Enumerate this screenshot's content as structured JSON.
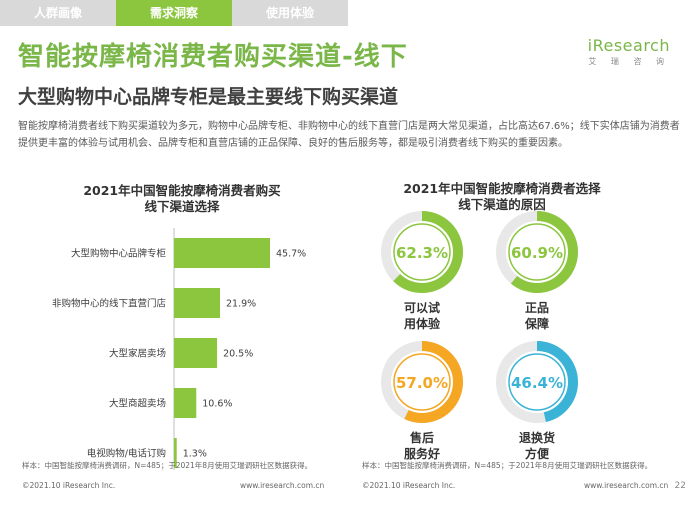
{
  "nav": {
    "tabs": [
      {
        "label": "人群画像"
      },
      {
        "label": "需求洞察"
      },
      {
        "label": "使用体验"
      }
    ]
  },
  "logo": {
    "main": "iResearch",
    "sub": "艾 瑞 咨 询"
  },
  "title": "智能按摩椅消费者购买渠道-线下",
  "subtitle": "大型购物中心品牌专柜是最主要线下购买渠道",
  "description": "智能按摩椅消费者线下购买渠道较为多元，购物中心品牌专柜、非购物中心的线下直营门店是两大常见渠道，占比高达67.6%；线下实体店铺为消费者提供更丰富的体验与试用机会、品牌专柜和直营店铺的正品保障、良好的售后服务等，都是吸引消费者线下购买的重要因素。",
  "left_chart_title": [
    "2021年中国智能按摩椅消费者购买",
    "线下渠道选择"
  ],
  "right_chart_title": [
    "2021年中国智能按摩椅消费者选择",
    "线下渠道的原因"
  ],
  "colors": {
    "accent": "#7ab648",
    "bar": "#8cc63f",
    "blue": "#3bb3d6",
    "orange": "#f5a623"
  },
  "chart_data": [
    {
      "type": "bar",
      "orientation": "horizontal",
      "title": "2021年中国智能按摩椅消费者购买线下渠道选择",
      "categories": [
        "大型购物中心品牌专柜",
        "非购物中心的线下直营门店",
        "大型家居卖场",
        "大型商超卖场",
        "电视购物/电话订购"
      ],
      "values": [
        45.7,
        21.9,
        20.5,
        10.6,
        1.3
      ],
      "value_labels": [
        "45.7%",
        "21.9%",
        "20.5%",
        "10.6%",
        "1.3%"
      ],
      "unit": "%",
      "xlim": [
        0,
        50
      ]
    },
    {
      "type": "pie",
      "subtype": "donut-gauges",
      "title": "2021年中国智能按摩椅消费者选择线下渠道的原因",
      "items": [
        {
          "label": "62.3%",
          "value": 62.3,
          "caption": [
            "可以试",
            "用体验"
          ],
          "color": "#8cc63f"
        },
        {
          "label": "60.9%",
          "value": 60.9,
          "caption": [
            "正品",
            "保障"
          ],
          "color": "#8cc63f"
        },
        {
          "label": "57.0%",
          "value": 57.0,
          "caption": [
            "售后",
            "服务好"
          ],
          "color": "#f5a623"
        },
        {
          "label": "46.4%",
          "value": 46.4,
          "caption": [
            "退换货",
            "方便"
          ],
          "color": "#3bb3d6"
        }
      ]
    }
  ],
  "notes": {
    "left": "样本：中国智能按摩椅消费调研，N=485；于2021年8月使用艾瑞调研社区数据获得。",
    "right": "样本：中国智能按摩椅消费调研，N=485；于2021年8月使用艾瑞调研社区数据获得。"
  },
  "footer": {
    "left_copyright": "©2021.10 iResearch Inc.",
    "left_url": "www.iresearch.com.cn",
    "right_copyright": "©2021.10 iResearch Inc.",
    "right_url": "www.iresearch.com.cn",
    "page": "22"
  }
}
